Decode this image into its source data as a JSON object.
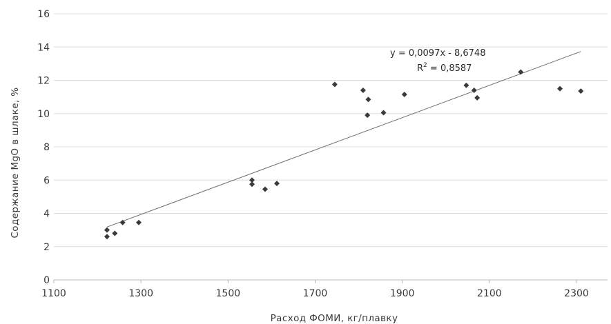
{
  "chart_data": {
    "type": "scatter",
    "title": "",
    "xlabel": "Расход ФОМИ, кг/плавку",
    "ylabel": "Содержание  MgO  в  шлаке, %",
    "xlim": [
      1100,
      2300
    ],
    "ylim": [
      0,
      16
    ],
    "x_ticks": [
      1100,
      1300,
      1500,
      1700,
      1900,
      2100,
      2300
    ],
    "y_ticks": [
      0,
      2,
      4,
      6,
      8,
      10,
      12,
      14,
      16
    ],
    "grid": true,
    "marker": "diamond",
    "colors": {
      "points": "#3a3a3a",
      "trendline": "#6a6a6a",
      "grid": "#dcdcdc"
    },
    "points": [
      {
        "x": 1222,
        "y": 3.0
      },
      {
        "x": 1222,
        "y": 2.6
      },
      {
        "x": 1240,
        "y": 2.8
      },
      {
        "x": 1258,
        "y": 3.45
      },
      {
        "x": 1295,
        "y": 3.45
      },
      {
        "x": 1555,
        "y": 6.0
      },
      {
        "x": 1555,
        "y": 5.75
      },
      {
        "x": 1585,
        "y": 5.45
      },
      {
        "x": 1612,
        "y": 5.8
      },
      {
        "x": 1745,
        "y": 11.75
      },
      {
        "x": 1810,
        "y": 11.4
      },
      {
        "x": 1822,
        "y": 10.85
      },
      {
        "x": 1820,
        "y": 9.9
      },
      {
        "x": 1857,
        "y": 10.05
      },
      {
        "x": 1905,
        "y": 11.15
      },
      {
        "x": 2047,
        "y": 11.7
      },
      {
        "x": 2065,
        "y": 11.4
      },
      {
        "x": 2072,
        "y": 10.95
      },
      {
        "x": 2172,
        "y": 12.5
      },
      {
        "x": 2262,
        "y": 11.5
      },
      {
        "x": 2310,
        "y": 11.35
      }
    ],
    "trendline": {
      "type": "linear",
      "slope": 0.0097,
      "intercept": -8.6748,
      "x_range": [
        1222,
        2310
      ]
    },
    "annotations": {
      "equation": "y = 0,0097x - 8,6748",
      "r2_prefix": "R",
      "r2_sup": "2",
      "r2_value": " = 0,8587"
    }
  }
}
